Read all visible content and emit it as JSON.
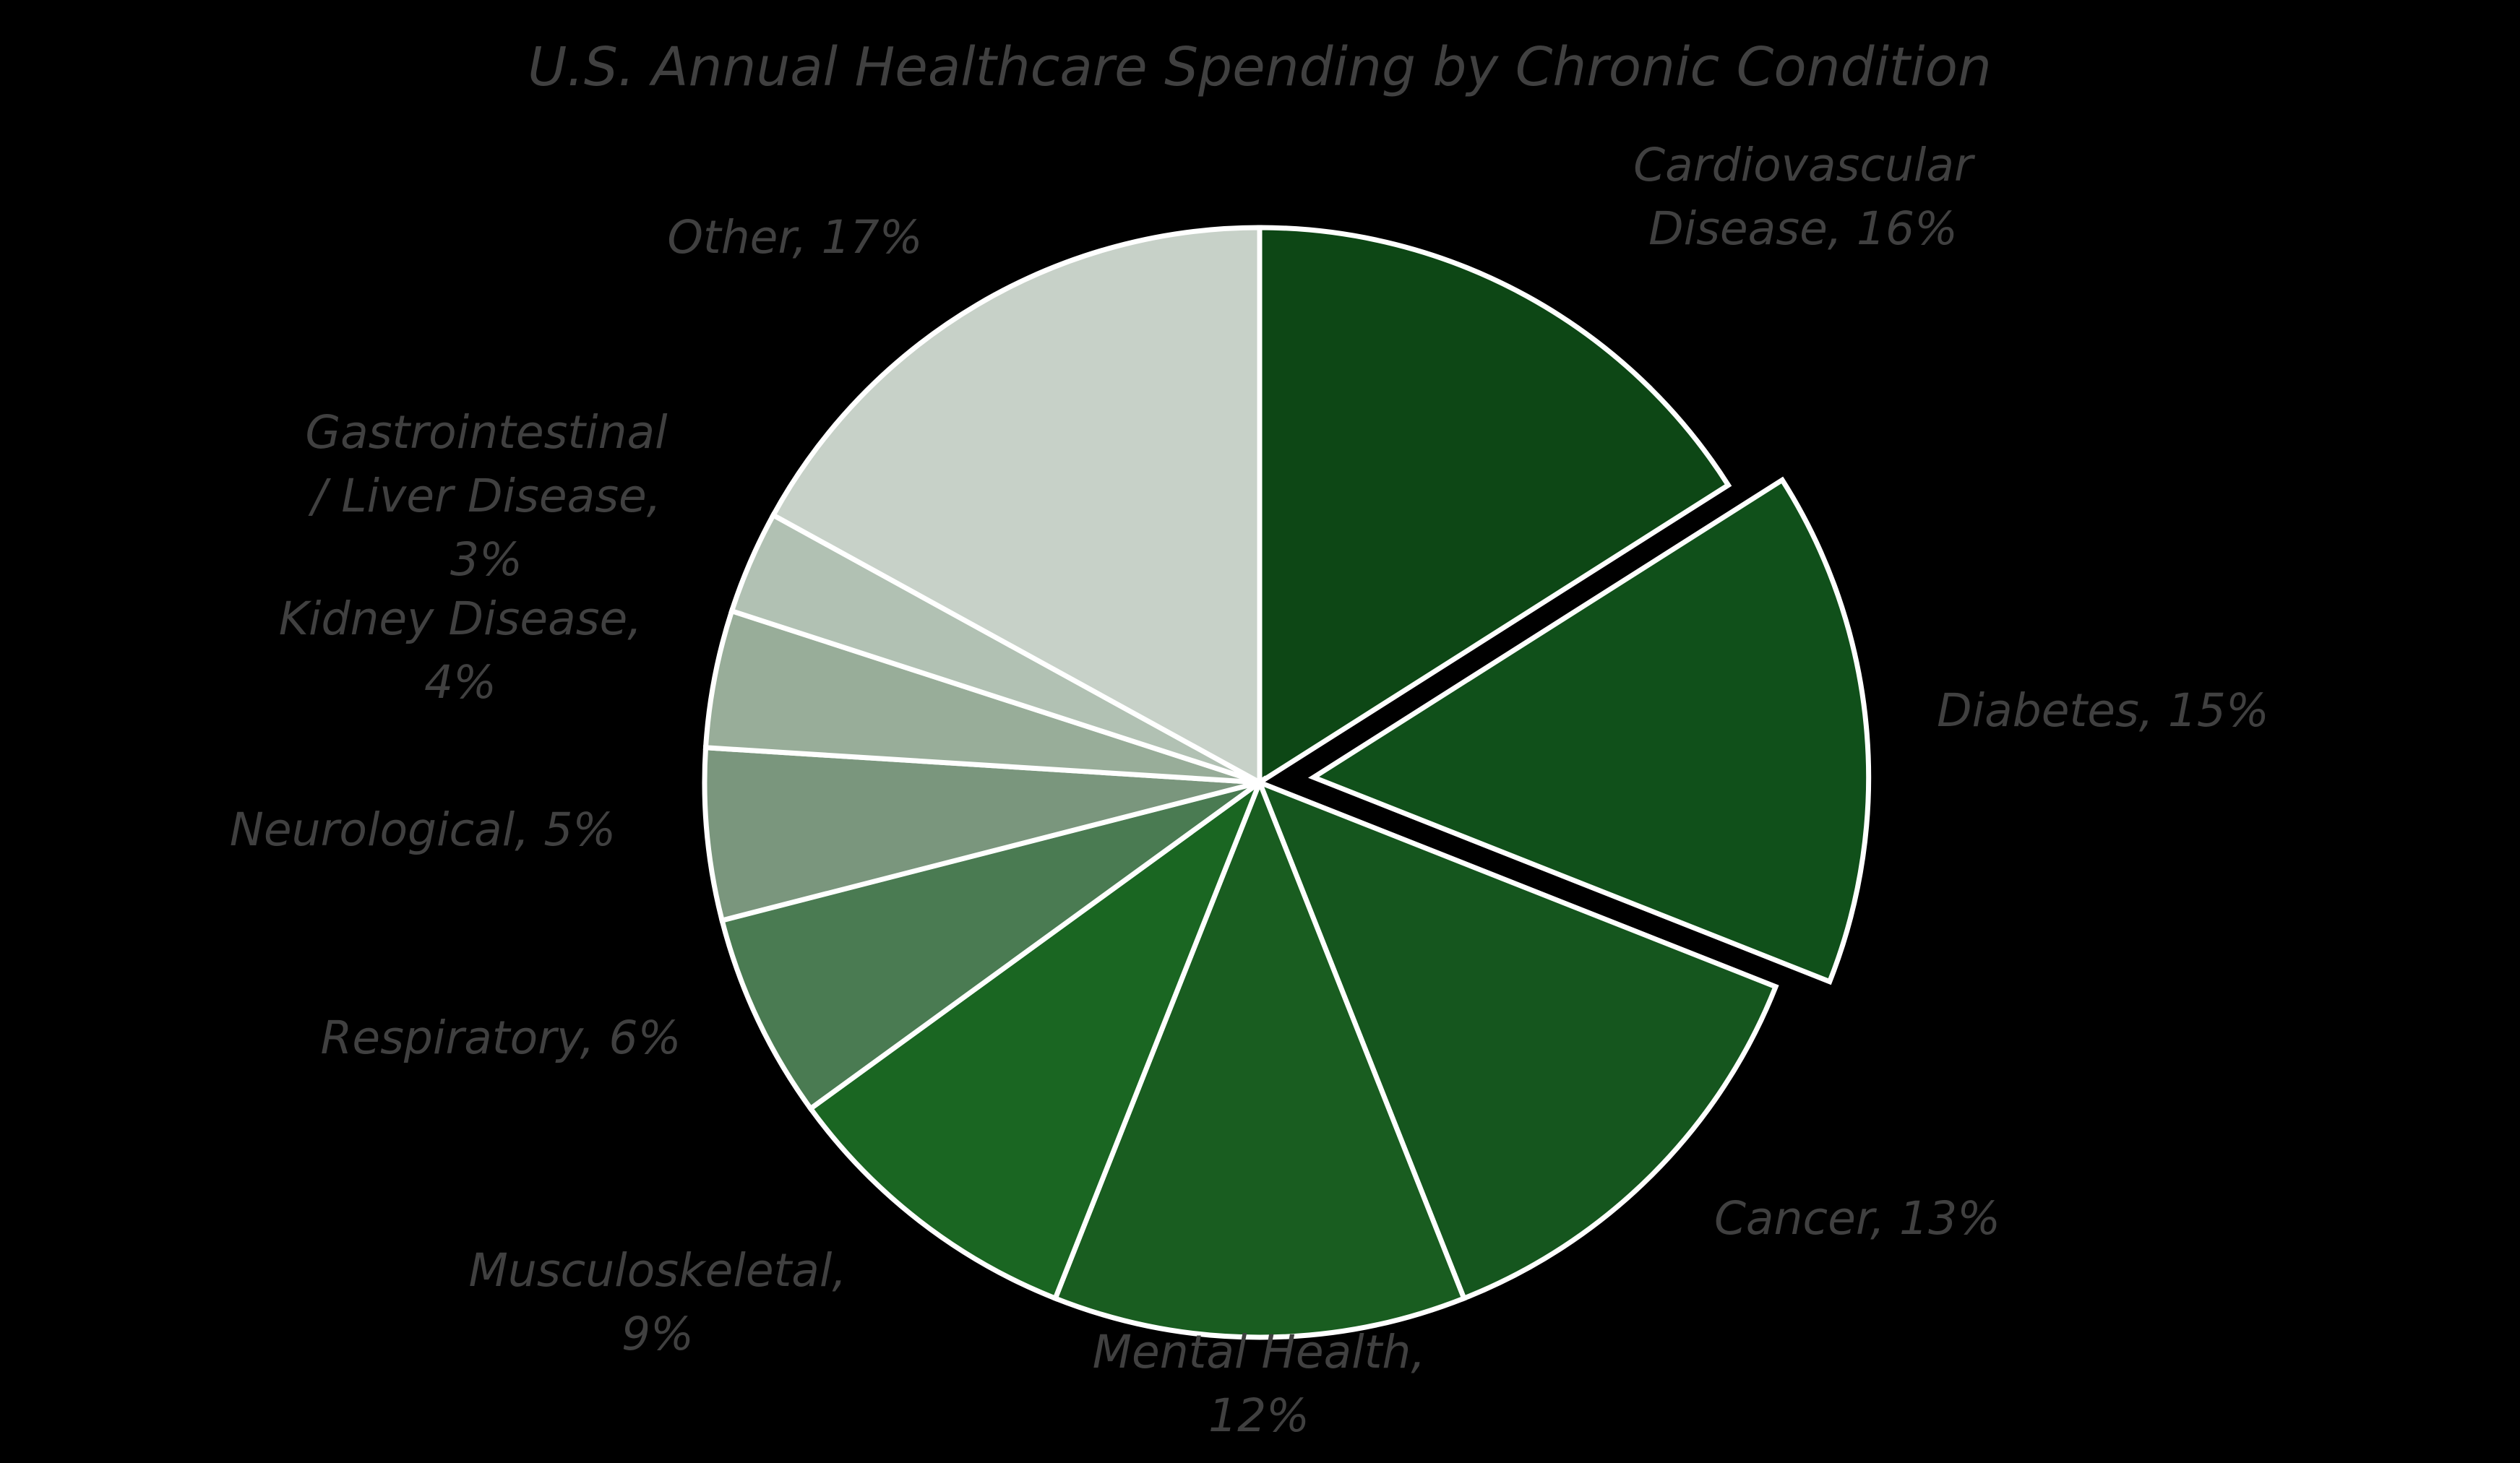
{
  "chart_data": {
    "type": "pie",
    "title": "U.S. Annual Healthcare Spending by Chronic Condition",
    "start_angle": "12 o'clock, clockwise",
    "exploded_slice": "Diabetes",
    "legend": "none (data labels on slices)",
    "label_format": "Category, Percentage",
    "categories": [
      "Cardiovascular Disease",
      "Diabetes",
      "Cancer",
      "Mental Health",
      "Musculoskeletal",
      "Respiratory",
      "Neurological",
      "Kidney Disease",
      "Gastrointestinal / Liver Disease",
      "Other"
    ],
    "values": [
      16,
      15,
      13,
      12,
      9,
      6,
      5,
      4,
      3,
      17
    ],
    "unit": "%",
    "colors": [
      "#0d4715",
      "#10501a",
      "#15561e",
      "#195d20",
      "#1a6622",
      "#4a7b52",
      "#7a967d",
      "#98ad99",
      "#b1c1b3",
      "#c7d1c8"
    ]
  },
  "style": {
    "background": "#000000",
    "text_color": "#404040",
    "separator_color": "#ffffff"
  },
  "labels": [
    {
      "lines": [
        "Cardiovascular",
        "Disease, 16%"
      ]
    },
    {
      "lines": [
        "Diabetes, 15%"
      ]
    },
    {
      "lines": [
        "Cancer, 13%"
      ]
    },
    {
      "lines": [
        "Mental Health,",
        "12%"
      ]
    },
    {
      "lines": [
        "Musculoskeletal,",
        "9%"
      ]
    },
    {
      "lines": [
        "Respiratory, 6%"
      ]
    },
    {
      "lines": [
        "Neurological, 5%"
      ]
    },
    {
      "lines": [
        "Kidney Disease,",
        "4%"
      ]
    },
    {
      "lines": [
        "Gastrointestinal",
        "/ Liver Disease,",
        "3%"
      ]
    },
    {
      "lines": [
        "Other, 17%"
      ]
    }
  ]
}
